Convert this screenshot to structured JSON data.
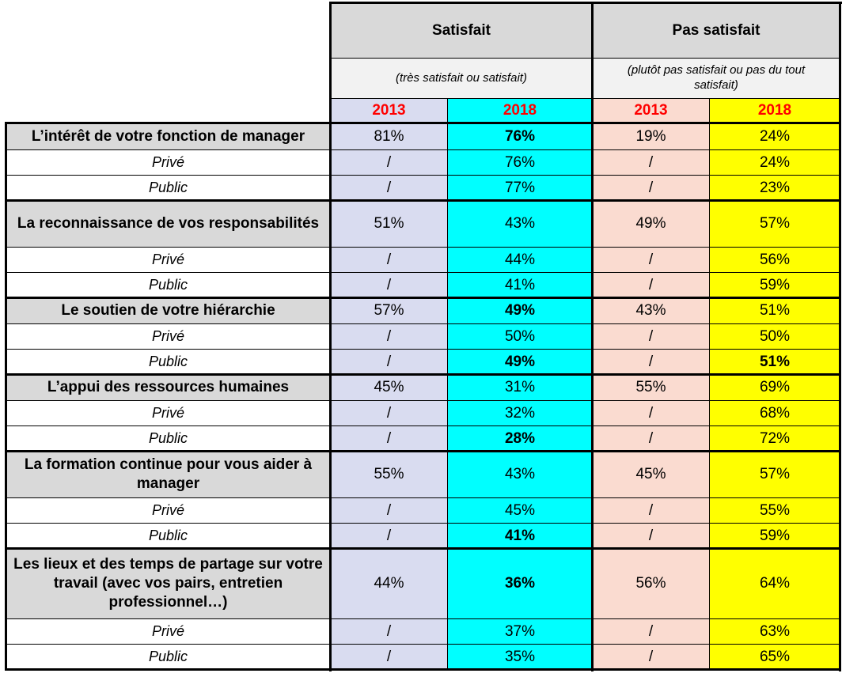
{
  "header": {
    "group1": "Satisfait",
    "group1_sub": "(très satisfait ou satisfait)",
    "group2": "Pas satisfait",
    "group2_sub": "(plutôt pas satisfait ou pas du tout satisfait)",
    "years": [
      "2013",
      "2018",
      "2013",
      "2018"
    ]
  },
  "colors": {
    "label_bg": "#d9d9d9",
    "col_2013_sat": "#d9dcf0",
    "col_2018_sat": "#00ffff",
    "col_2013_pas": "#fadbd0",
    "col_2018_pas": "#ffff00",
    "year_text": "#ff0000"
  },
  "chart_data": {
    "type": "table",
    "columns": [
      "Satisfait 2013",
      "Satisfait 2018",
      "Pas satisfait 2013",
      "Pas satisfait 2018"
    ],
    "sections": [
      {
        "label": "L’intérêt de votre fonction de manager",
        "values": [
          "81%",
          "76%",
          "19%",
          "24%"
        ],
        "bold": [
          false,
          true,
          false,
          false
        ],
        "subrows": [
          {
            "label": "Privé",
            "values": [
              "/",
              "76%",
              "/",
              "24%"
            ],
            "bold": [
              false,
              false,
              false,
              false
            ]
          },
          {
            "label": "Public",
            "values": [
              "/",
              "77%",
              "/",
              "23%"
            ],
            "bold": [
              false,
              false,
              false,
              false
            ]
          }
        ]
      },
      {
        "label": "La reconnaissance de vos responsabilités",
        "values": [
          "51%",
          "43%",
          "49%",
          "57%"
        ],
        "bold": [
          false,
          false,
          false,
          false
        ],
        "subrows": [
          {
            "label": "Privé",
            "values": [
              "/",
              "44%",
              "/",
              "56%"
            ],
            "bold": [
              false,
              false,
              false,
              false
            ]
          },
          {
            "label": "Public",
            "values": [
              "/",
              "41%",
              "/",
              "59%"
            ],
            "bold": [
              false,
              false,
              false,
              false
            ]
          }
        ]
      },
      {
        "label": "Le soutien de votre hiérarchie",
        "values": [
          "57%",
          "49%",
          "43%",
          "51%"
        ],
        "bold": [
          false,
          true,
          false,
          false
        ],
        "subrows": [
          {
            "label": "Privé",
            "values": [
              "/",
              "50%",
              "/",
              "50%"
            ],
            "bold": [
              false,
              false,
              false,
              false
            ]
          },
          {
            "label": "Public",
            "values": [
              "/",
              "49%",
              "/",
              "51%"
            ],
            "bold": [
              false,
              true,
              false,
              true
            ]
          }
        ]
      },
      {
        "label": "L’appui des ressources humaines",
        "values": [
          "45%",
          "31%",
          "55%",
          "69%"
        ],
        "bold": [
          false,
          false,
          false,
          false
        ],
        "subrows": [
          {
            "label": "Privé",
            "values": [
              "/",
              "32%",
              "/",
              "68%"
            ],
            "bold": [
              false,
              false,
              false,
              false
            ]
          },
          {
            "label": "Public",
            "values": [
              "/",
              "28%",
              "/",
              "72%"
            ],
            "bold": [
              false,
              true,
              false,
              false
            ]
          }
        ]
      },
      {
        "label": "La formation continue pour vous aider à manager",
        "values": [
          "55%",
          "43%",
          "45%",
          "57%"
        ],
        "bold": [
          false,
          false,
          false,
          false
        ],
        "subrows": [
          {
            "label": "Privé",
            "values": [
              "/",
              "45%",
              "/",
              "55%"
            ],
            "bold": [
              false,
              false,
              false,
              false
            ]
          },
          {
            "label": "Public",
            "values": [
              "/",
              "41%",
              "/",
              "59%"
            ],
            "bold": [
              false,
              true,
              false,
              false
            ]
          }
        ]
      },
      {
        "label": "Les lieux et des temps de partage sur votre travail (avec vos pairs, entretien professionnel…)",
        "values": [
          "44%",
          "36%",
          "56%",
          "64%"
        ],
        "bold": [
          false,
          true,
          false,
          false
        ],
        "subrows": [
          {
            "label": "Privé",
            "values": [
              "/",
              "37%",
              "/",
              "63%"
            ],
            "bold": [
              false,
              false,
              false,
              false
            ]
          },
          {
            "label": "Public",
            "values": [
              "/",
              "35%",
              "/",
              "65%"
            ],
            "bold": [
              false,
              false,
              false,
              false
            ]
          }
        ]
      }
    ]
  }
}
